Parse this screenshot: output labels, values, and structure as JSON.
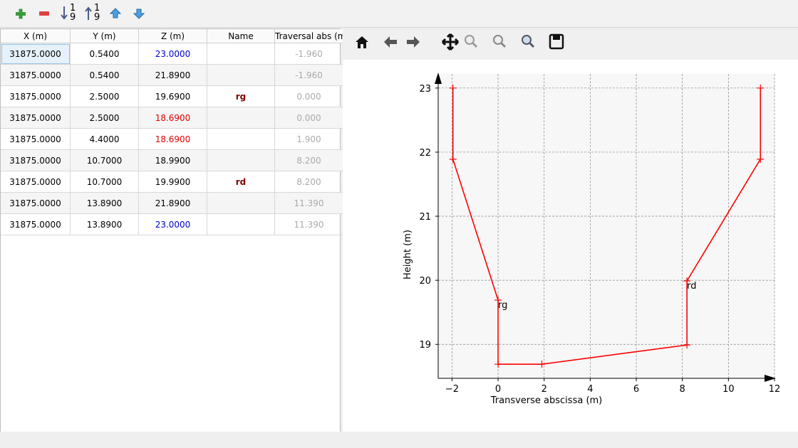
{
  "table": {
    "headers": [
      "X (m)",
      "Y (m)",
      "Z (m)",
      "Name",
      "Traversal abs (m"
    ],
    "rows": [
      [
        "31875.0000",
        "0.5400",
        "23.0000",
        "",
        "-1.960"
      ],
      [
        "31875.0000",
        "0.5400",
        "21.8900",
        "",
        "-1.960"
      ],
      [
        "31875.0000",
        "2.5000",
        "19.6900",
        "rg",
        "0.000"
      ],
      [
        "31875.0000",
        "2.5000",
        "18.6900",
        "",
        "0.000"
      ],
      [
        "31875.0000",
        "4.4000",
        "18.6900",
        "",
        "1.900"
      ],
      [
        "31875.0000",
        "10.7000",
        "18.9900",
        "",
        "8.200"
      ],
      [
        "31875.0000",
        "10.7000",
        "19.9900",
        "rd",
        "8.200"
      ],
      [
        "31875.0000",
        "13.8900",
        "21.8900",
        "",
        "11.390"
      ],
      [
        "31875.0000",
        "13.8900",
        "23.0000",
        "",
        "11.390"
      ]
    ],
    "z_colors": [
      "#0000cc",
      null,
      null,
      "#e00000",
      "#e00000",
      null,
      null,
      null,
      "#0000cc"
    ]
  },
  "chart_data": {
    "type": "line",
    "xlabel": "Transverse abscissa (m)",
    "ylabel": "Height (m)",
    "x": [
      -1.96,
      -1.96,
      0,
      0,
      1.9,
      8.2,
      8.2,
      11.39,
      11.39
    ],
    "values": [
      23,
      21.89,
      19.69,
      18.69,
      18.69,
      18.99,
      19.99,
      21.89,
      23
    ],
    "point_labels": [
      null,
      null,
      "rg",
      null,
      null,
      null,
      "rd",
      null,
      null
    ],
    "color": "#ff0000",
    "xlim": [
      -2.6,
      12
    ],
    "ylim": [
      18.47,
      23.22
    ],
    "xticks": [
      {
        "value": -2,
        "label": "−2"
      },
      0,
      2,
      4,
      6,
      8,
      10,
      12
    ],
    "yticks": [
      19,
      20,
      21,
      22,
      23
    ],
    "grid": true
  }
}
